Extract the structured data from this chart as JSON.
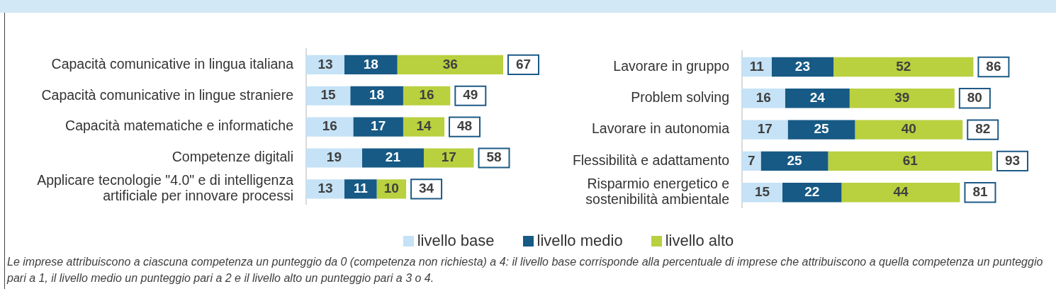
{
  "chart_data": [
    {
      "type": "bar",
      "orientation": "horizontal",
      "stacked": true,
      "data_labels": true,
      "legend": "bottom",
      "categories": [
        "Capacità comunicative in lingua italiana",
        "Capacità comunicative in lingue straniere",
        "Capacità matematiche e informatiche",
        "Competenze digitali",
        "Applicare tecnologie \"4.0\" e di intelligenza artificiale per innovare processi"
      ],
      "series": [
        {
          "name": "livello base",
          "color": "#c5e2f6",
          "values": [
            13,
            15,
            16,
            19,
            13
          ]
        },
        {
          "name": "livello medio",
          "color": "#175a85",
          "values": [
            18,
            18,
            17,
            21,
            11
          ]
        },
        {
          "name": "livello alto",
          "color": "#b9d03f",
          "values": [
            36,
            16,
            14,
            17,
            10
          ]
        }
      ],
      "totals": [
        "67",
        "49",
        "48",
        "58",
        "34"
      ],
      "annotations": [
        "Le imprese attribuiscono a ciascuna competenza un punteggio da 0 (competenza non richiesta) a 4: il livello base corrisponde alla percentuale di imprese che attribuiscono a quella competenza un punteggio pari a 1, il livello medio un punteggio pari a 2 e il livello alto un punteggio pari a 3 o 4."
      ]
    },
    {
      "type": "bar",
      "orientation": "horizontal",
      "stacked": true,
      "data_labels": true,
      "categories": [
        "Lavorare in gruppo",
        "Problem solving",
        "Lavorare in autonomia",
        "Flessibilità e adattamento",
        "Risparmio energetico e sostenibilità ambientale"
      ],
      "series": [
        {
          "color": "#c5e2f6",
          "values": [
            11,
            16,
            17,
            7,
            15
          ]
        },
        {
          "color": "#175a85",
          "values": [
            23,
            24,
            25,
            25,
            22
          ]
        },
        {
          "color": "#b9d03f",
          "values": [
            52,
            39,
            40,
            61,
            44
          ]
        }
      ],
      "totals": [
        "86",
        "80",
        "82",
        "93",
        "81"
      ]
    }
  ]
}
